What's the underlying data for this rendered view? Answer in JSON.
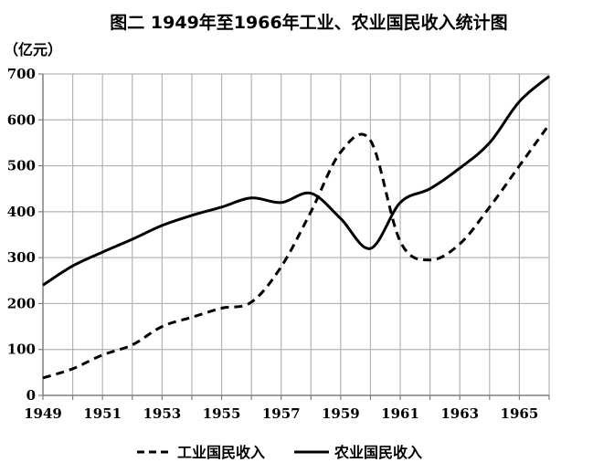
{
  "chart_data": {
    "type": "line",
    "title": "图二 1949年至1966年工业、农业国民收入统计图",
    "ylabel": "（亿元）",
    "xlabel": "",
    "xlim": [
      1949,
      1966
    ],
    "ylim": [
      0,
      700
    ],
    "grid": true,
    "legend_position": "bottom",
    "x_ticks": [
      "1949",
      "1951",
      "1953",
      "1955",
      "1957",
      "1959",
      "1961",
      "1963",
      "1965"
    ],
    "y_ticks": [
      "0",
      "100",
      "200",
      "300",
      "400",
      "500",
      "600",
      "700"
    ],
    "x": [
      1949,
      1950,
      1951,
      1952,
      1953,
      1954,
      1955,
      1956,
      1957,
      1958,
      1959,
      1960,
      1961,
      1962,
      1963,
      1964,
      1965,
      1966
    ],
    "series": [
      {
        "name": "工业国民收入",
        "style": "dashed",
        "color": "#000000",
        "values": [
          38,
          58,
          88,
          110,
          150,
          170,
          190,
          203,
          280,
          400,
          530,
          555,
          335,
          295,
          330,
          410,
          500,
          590
        ]
      },
      {
        "name": "农业国民收入",
        "style": "solid",
        "color": "#000000",
        "values": [
          240,
          282,
          312,
          340,
          370,
          392,
          410,
          430,
          420,
          440,
          385,
          320,
          420,
          450,
          495,
          550,
          640,
          695
        ]
      }
    ]
  }
}
